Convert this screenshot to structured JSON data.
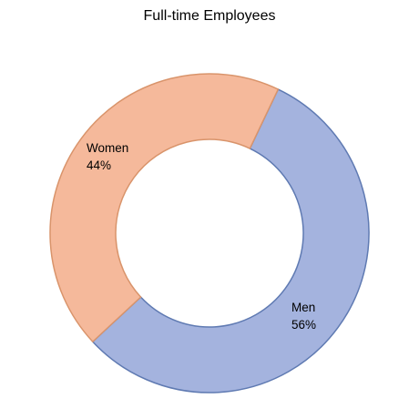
{
  "chart_data": {
    "type": "pie",
    "variant": "donut",
    "title": "Full-time Employees",
    "slices": [
      {
        "name": "Men",
        "value": 56,
        "label": "56%",
        "color": "#a4b3de",
        "stroke": "#5f7ab2"
      },
      {
        "name": "Women",
        "value": 44,
        "label": "44%",
        "color": "#f5b99b",
        "stroke": "#d9946b"
      }
    ],
    "legend": "none",
    "data_labels": "category and percentage"
  }
}
